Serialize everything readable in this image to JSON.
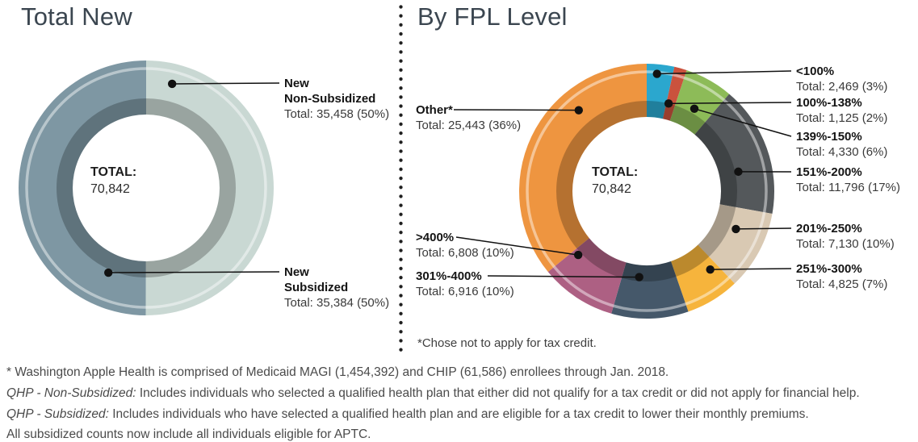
{
  "chart_data": [
    {
      "type": "donut",
      "title": "Total New",
      "total": 70842,
      "center": {
        "label": "TOTAL:",
        "value": "70,842"
      },
      "categories": [
        "New Non-Subsidized",
        "New Subsidized"
      ],
      "values": [
        35458,
        35384
      ],
      "segments": [
        {
          "name": "New Non-Subsidized",
          "name_lines": [
            "New",
            "Non-Subsidized"
          ],
          "value": 35458,
          "pct": "50%",
          "total_label": "Total: 35,458 (50%)",
          "color": "#c9d8d3"
        },
        {
          "name": "New Subsidized",
          "name_lines": [
            "New",
            "Subsidized"
          ],
          "value": 35384,
          "pct": "50%",
          "total_label": "Total: 35,384 (50%)",
          "color": "#7e97a3"
        }
      ]
    },
    {
      "type": "donut",
      "title": "By FPL Level",
      "total": 70842,
      "center": {
        "label": "TOTAL:",
        "value": "70,842"
      },
      "footnote": "*Chose not to apply for tax credit.",
      "categories": [
        "<100%",
        "100%-138%",
        "139%-150%",
        "151%-200%",
        "201%-250%",
        "251%-300%",
        "301%-400%",
        ">400%",
        "Other*"
      ],
      "values": [
        2469,
        1125,
        4330,
        11796,
        7130,
        4825,
        6916,
        6808,
        25443
      ],
      "segments": [
        {
          "name": "<100%",
          "name_lines": [
            "<100%"
          ],
          "value": 2469,
          "pct": "3%",
          "total_label": "Total: 2,469 (3%)",
          "color": "#2ba7ce"
        },
        {
          "name": "100%-138%",
          "name_lines": [
            "100%-138%"
          ],
          "value": 1125,
          "pct": "2%",
          "total_label": "Total: 1,125 (2%)",
          "color": "#ca523d"
        },
        {
          "name": "139%-150%",
          "name_lines": [
            "139%-150%"
          ],
          "value": 4330,
          "pct": "6%",
          "total_label": "Total: 4,330 (6%)",
          "color": "#8dbb58"
        },
        {
          "name": "151%-200%",
          "name_lines": [
            "151%-200%"
          ],
          "value": 11796,
          "pct": "17%",
          "total_label": "Total: 11,796 (17%)",
          "color": "#54585b"
        },
        {
          "name": "201%-250%",
          "name_lines": [
            "201%-250%"
          ],
          "value": 7130,
          "pct": "10%",
          "total_label": "Total: 7,130 (10%)",
          "color": "#d9c9b3"
        },
        {
          "name": "251%-300%",
          "name_lines": [
            "251%-300%"
          ],
          "value": 4825,
          "pct": "7%",
          "total_label": "Total: 4,825 (7%)",
          "color": "#f6b43c"
        },
        {
          "name": "301%-400%",
          "name_lines": [
            "301%-400%"
          ],
          "value": 6916,
          "pct": "10%",
          "total_label": "Total: 6,916 (10%)",
          "color": "#45586a"
        },
        {
          "name": ">400%",
          "name_lines": [
            ">400%"
          ],
          "value": 6808,
          "pct": "10%",
          "total_label": "Total: 6,808 (10%)",
          "color": "#ad6083"
        },
        {
          "name": "Other*",
          "name_lines": [
            "Other*"
          ],
          "value": 25443,
          "pct": "36%",
          "total_label": "Total: 25,443 (36%)",
          "color": "#ee9540"
        }
      ]
    }
  ],
  "footnotes": [
    {
      "lead": "",
      "rest": "* Washington Apple Health is comprised of Medicaid MAGI (1,454,392) and CHIP (61,586) enrollees through Jan. 2018."
    },
    {
      "lead": "QHP - Non-Subsidized:",
      "rest": " Includes individuals who selected a qualified health plan that either did not qualify for a tax credit or did not apply for financial help."
    },
    {
      "lead": "QHP - Subsidized:",
      "rest": " Includes individuals who have selected a qualified health plan and are eligible for a tax credit to lower their monthly premiums."
    },
    {
      "lead": "",
      "rest": "All subsidized counts now include all individuals eligible for APTC."
    }
  ]
}
